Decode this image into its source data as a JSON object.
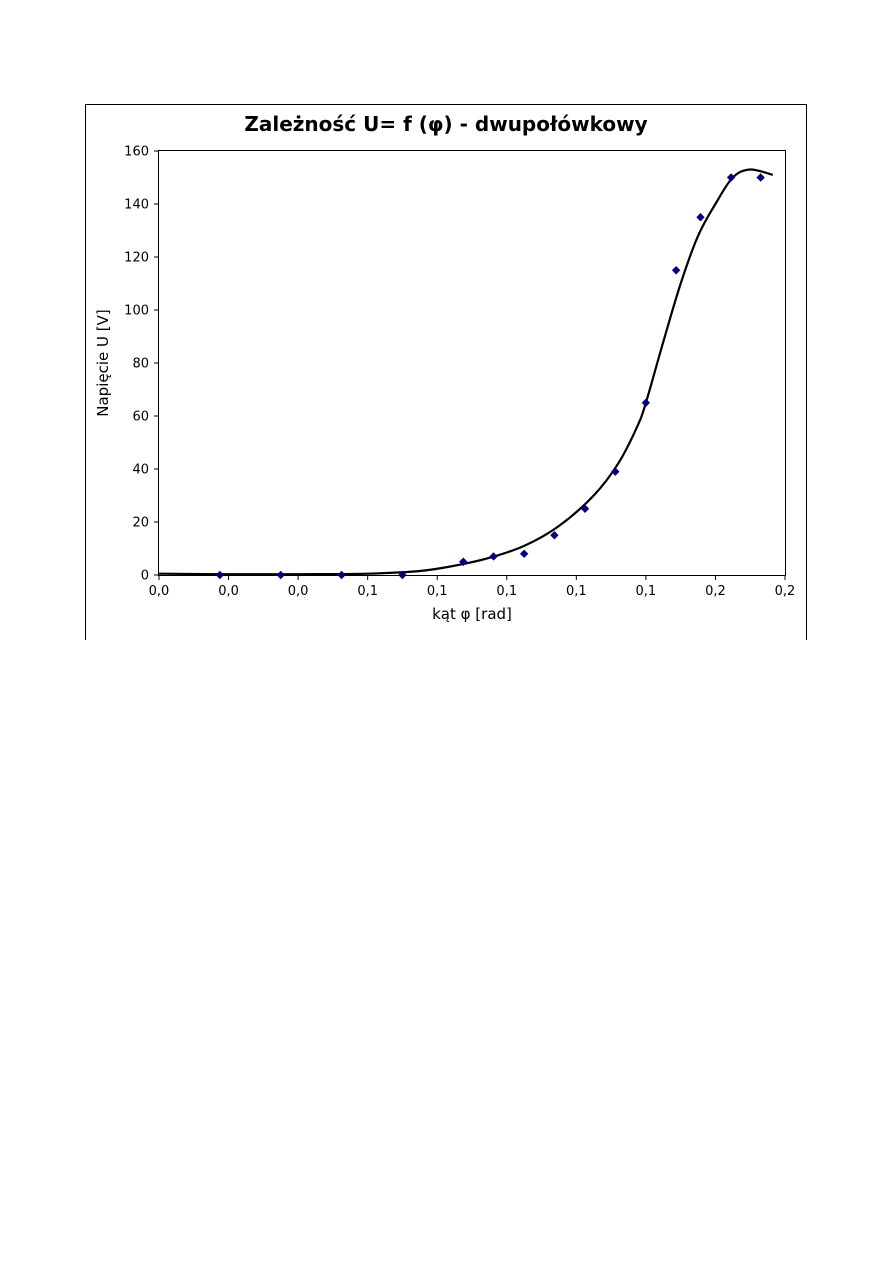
{
  "chart_data": {
    "type": "scatter",
    "title": "Zależność U= f (φ) - dwupołówkowy",
    "xlabel": "kąt φ [rad]",
    "ylabel": "Napięcie U [V]",
    "xlim": [
      0,
      0.18
    ],
    "ylim": [
      0,
      160
    ],
    "x_tick_labels": [
      "0,0",
      "0,0",
      "0,0",
      "0,1",
      "0,1",
      "0,1",
      "0,1",
      "0,1",
      "0,2",
      "0,2"
    ],
    "y_ticks": [
      0,
      20,
      40,
      60,
      80,
      100,
      120,
      140,
      160
    ],
    "grid": false,
    "legend": "none",
    "series": [
      {
        "kind": "points",
        "marker": "diamond",
        "color": "#00007f",
        "x": [
          0.0175,
          0.035,
          0.0525,
          0.07,
          0.0875,
          0.0962,
          0.105,
          0.1137,
          0.1225,
          0.1312,
          0.14,
          0.1487,
          0.1557,
          0.1645,
          0.173
        ],
        "y": [
          0,
          0,
          0,
          0,
          5,
          7,
          8,
          15,
          25,
          39,
          65,
          115,
          135,
          150,
          150
        ]
      },
      {
        "kind": "trendline",
        "color": "#000000",
        "x": [
          0.0,
          0.02,
          0.04,
          0.06,
          0.075,
          0.085,
          0.095,
          0.105,
          0.115,
          0.125,
          0.132,
          0.1375,
          0.14,
          0.145,
          0.15,
          0.155,
          0.16,
          0.165,
          0.17,
          0.1765
        ],
        "y": [
          0.5,
          0.3,
          0.3,
          0.5,
          1.5,
          3.5,
          6.5,
          11,
          18.5,
          30,
          42,
          56,
          65,
          88,
          110,
          128,
          140,
          150,
          153,
          151
        ]
      }
    ]
  }
}
